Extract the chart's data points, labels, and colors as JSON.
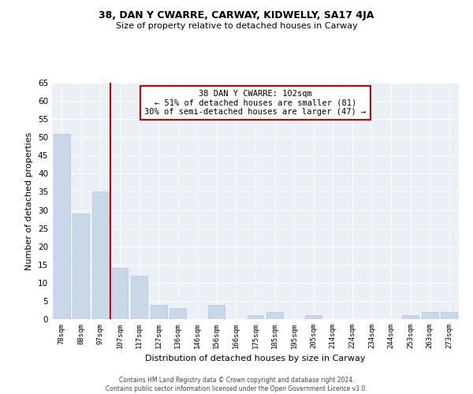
{
  "title": "38, DAN Y CWARRE, CARWAY, KIDWELLY, SA17 4JA",
  "subtitle": "Size of property relative to detached houses in Carway",
  "xlabel": "Distribution of detached houses by size in Carway",
  "ylabel": "Number of detached properties",
  "bar_color": "#c8d8e8",
  "bar_edge_color": "#b0c4de",
  "categories": [
    "78sqm",
    "88sqm",
    "97sqm",
    "107sqm",
    "117sqm",
    "127sqm",
    "136sqm",
    "146sqm",
    "156sqm",
    "166sqm",
    "175sqm",
    "185sqm",
    "195sqm",
    "205sqm",
    "214sqm",
    "224sqm",
    "234sqm",
    "244sqm",
    "253sqm",
    "263sqm",
    "273sqm"
  ],
  "values": [
    51,
    29,
    35,
    14,
    12,
    4,
    3,
    0,
    4,
    0,
    1,
    2,
    0,
    1,
    0,
    0,
    0,
    0,
    1,
    2,
    2
  ],
  "ylim": [
    0,
    65
  ],
  "yticks": [
    0,
    5,
    10,
    15,
    20,
    25,
    30,
    35,
    40,
    45,
    50,
    55,
    60,
    65
  ],
  "annotation_title": "38 DAN Y CWARRE: 102sqm",
  "annotation_line1": "← 51% of detached houses are smaller (81)",
  "annotation_line2": "30% of semi-detached houses are larger (47) →",
  "annotation_box_color": "#ffffff",
  "annotation_box_edge": "#cc0000",
  "ref_line_color": "#cc0000",
  "background_color": "#eaf0f6",
  "grid_color": "#ffffff",
  "footer_line1": "Contains HM Land Registry data © Crown copyright and database right 2024.",
  "footer_line2": "Contains public sector information licensed under the Open Government Licence v3.0."
}
